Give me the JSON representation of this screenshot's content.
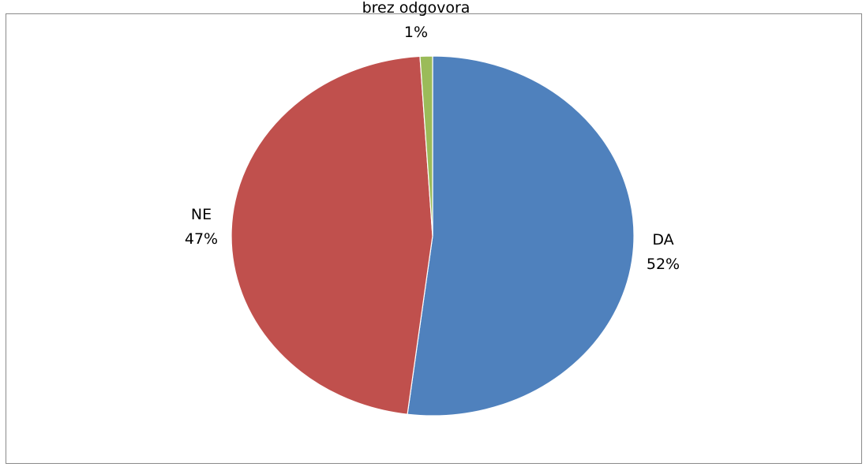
{
  "chart_data": {
    "type": "pie",
    "slices": [
      {
        "label": "DA",
        "value": 52,
        "percent_label": "52%",
        "color": "#4f81bd"
      },
      {
        "label": "NE",
        "value": 47,
        "percent_label": "47%",
        "color": "#c0504d"
      },
      {
        "label": "brez odgovora",
        "value": 1,
        "percent_label": "1%",
        "color": "#9bbb59"
      }
    ]
  }
}
